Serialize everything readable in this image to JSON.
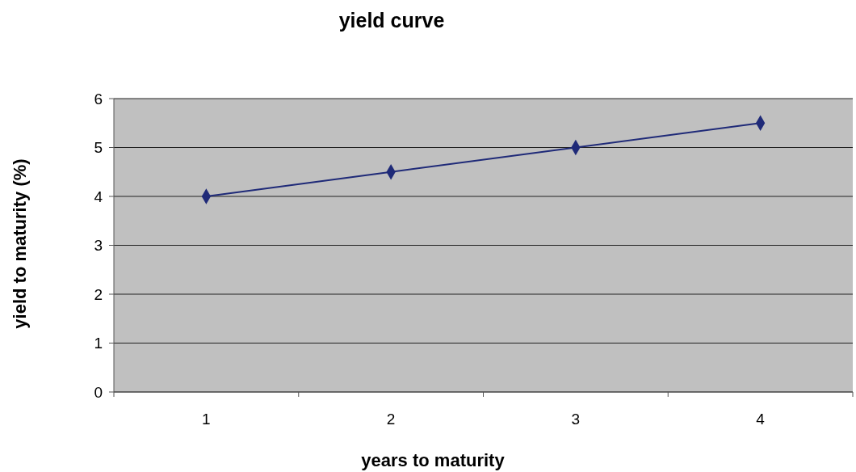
{
  "chart_data": {
    "type": "line",
    "title": "yield curve",
    "xlabel": "years to maturity",
    "ylabel": "yield to maturity (%)",
    "categories": [
      "1",
      "2",
      "3",
      "4"
    ],
    "series": [
      {
        "color": "#1f2a78",
        "values": [
          4,
          4.5,
          5,
          5.5
        ]
      }
    ],
    "ylim": [
      0,
      6
    ],
    "yticks": [
      0,
      1,
      2,
      3,
      4,
      5,
      6
    ],
    "grid": "y",
    "marker": "diamond"
  }
}
